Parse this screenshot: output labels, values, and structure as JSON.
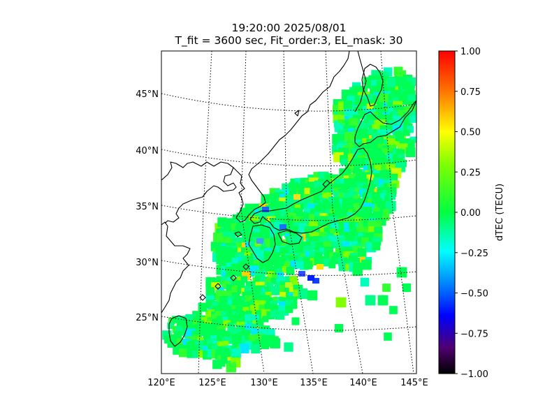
{
  "title": {
    "line1": "19:20:00 2025/08/01",
    "line2": "T_fit = 3600 sec, Fit_order:3, EL_mask: 30"
  },
  "map": {
    "lat_labels": [
      "45°N",
      "40°N",
      "35°N",
      "30°N",
      "25°N"
    ],
    "lon_labels": [
      "120°E",
      "125°E",
      "130°E",
      "135°E",
      "140°E",
      "145°E"
    ],
    "lat_range": [
      20,
      49
    ],
    "lon_range": [
      120,
      145
    ],
    "graticule_style": "dotted",
    "data_color_scale": "nipy_spectral-like"
  },
  "colorbar": {
    "label": "dTEC (TECU)",
    "ticks": [
      "1.00",
      "0.75",
      "0.50",
      "0.25",
      "0.00",
      "−0.25",
      "−0.50",
      "−0.75",
      "−1.00"
    ],
    "range": [
      -1.0,
      1.0
    ],
    "colors": [
      "#ff0000",
      "#ff8000",
      "#ffff00",
      "#80ff00",
      "#00ff55",
      "#00ffff",
      "#0055ff",
      "#0000ff",
      "#400060",
      "#000000"
    ]
  }
}
